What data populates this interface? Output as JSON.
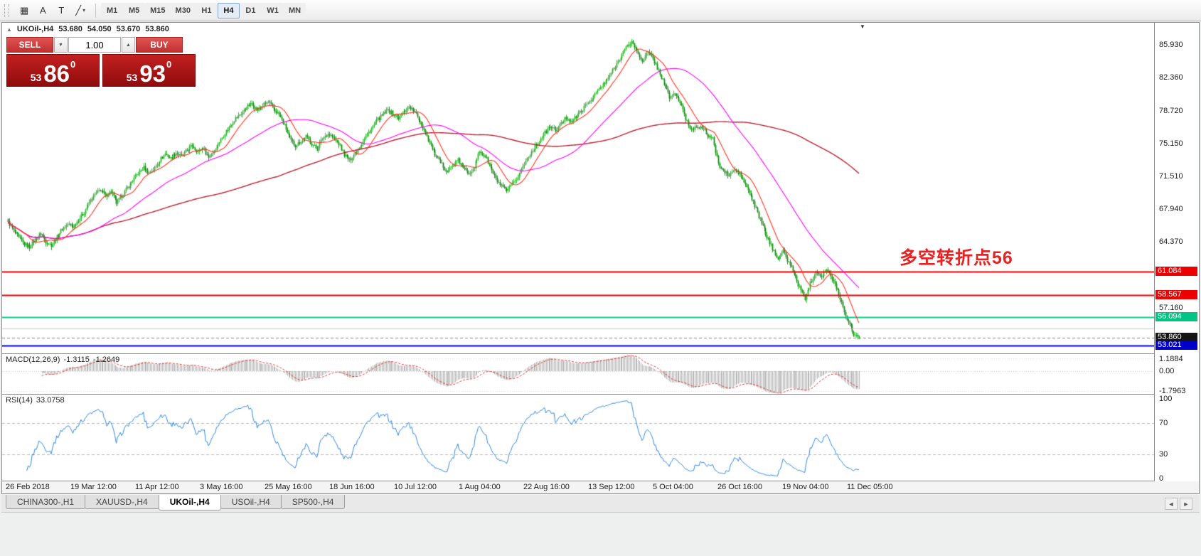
{
  "toolbar": {
    "tools": [
      {
        "name": "crosshair-tool-icon",
        "glyph": "▦"
      },
      {
        "name": "text-tool-icon",
        "glyph": "A"
      },
      {
        "name": "text-label-tool-icon",
        "glyph": "T"
      },
      {
        "name": "draw-line-tool-icon",
        "glyph": "╱",
        "caret": "▾"
      }
    ],
    "timeframes": [
      "M1",
      "M5",
      "M15",
      "M30",
      "H1",
      "H4",
      "D1",
      "W1",
      "MN"
    ],
    "active_timeframe": "H4"
  },
  "header": {
    "collapse_icon": "▲",
    "symbol": "UKOil-,H4",
    "open": "53.680",
    "high": "54.050",
    "low": "53.670",
    "close": "53.860"
  },
  "trade_panel": {
    "sell_label": "SELL",
    "buy_label": "BUY",
    "volume": "1.00",
    "volume_down_icon": "▼",
    "volume_up_icon": "▲",
    "sell_price": {
      "small": "53",
      "big": "86",
      "sup": "0"
    },
    "buy_price": {
      "small": "53",
      "big": "93",
      "sup": "0"
    }
  },
  "annotation": {
    "text": "多空转折点56",
    "color": "#e62222"
  },
  "price_axis": {
    "ticks": [
      "85.930",
      "82.360",
      "78.720",
      "75.150",
      "71.510",
      "67.940",
      "64.370",
      "57.160"
    ]
  },
  "levels": [
    {
      "price": 61.084,
      "label": "61.084",
      "color": "#ee0000",
      "tag_bg": "#ee0000",
      "width": 2,
      "style": "solid"
    },
    {
      "price": 58.567,
      "label": "58.567",
      "color": "#ee0000",
      "tag_bg": "#ee0000",
      "width": 2,
      "style": "solid"
    },
    {
      "price": 56.094,
      "label": "56.094",
      "color": "#00d08c",
      "tag_bg": "#00c483",
      "width": 2,
      "style": "solid"
    },
    {
      "price": 54.88,
      "label": "",
      "color": "#c8c8c8",
      "tag_bg": "",
      "width": 1,
      "style": "solid"
    },
    {
      "price": 53.86,
      "label": "53.860",
      "color": "#808080",
      "tag_bg": "#141414",
      "width": 1,
      "style": "dash"
    },
    {
      "price": 53.021,
      "label": "53.021",
      "color": "#0000cc",
      "tag_bg": "#0000c8",
      "width": 2,
      "style": "solid"
    }
  ],
  "macd": {
    "name": "MACD(12,26,9)",
    "value1": "-1.3115",
    "value2": "-1.2649",
    "axis": [
      "1.1884",
      "0.00",
      "-1.7963"
    ],
    "axis_values": [
      1.1884,
      0,
      -1.7963
    ]
  },
  "rsi": {
    "name": "RSI(14)",
    "value": "33.0758",
    "axis": [
      "100",
      "70",
      "30",
      "0"
    ],
    "axis_values": [
      100,
      70,
      30,
      0
    ],
    "levels": [
      70,
      30
    ]
  },
  "dates": [
    "26 Feb 2018",
    "19 Mar 12:00",
    "11 Apr 12:00",
    "3 May 16:00",
    "25 May 16:00",
    "18 Jun 16:00",
    "10 Jul 12:00",
    "1 Aug 04:00",
    "22 Aug 16:00",
    "13 Sep 12:00",
    "5 Oct 04:00",
    "26 Oct 16:00",
    "19 Nov 04:00",
    "11 Dec 05:00"
  ],
  "tabs": {
    "items": [
      "CHINA300-,H1",
      "XAUUSD-,H4",
      "UKOil-,H4",
      "USOil-,H4",
      "SP500-,H4"
    ],
    "active_index": 2,
    "scroll_left_icon": "◄",
    "scroll_right_icon": "►"
  },
  "chart_data": {
    "type": "candlestick",
    "title": "UKOil-,H4",
    "symbol": "UKOil-",
    "timeframe": "H4",
    "ohlc_current": {
      "open": 53.68,
      "high": 54.05,
      "low": 53.67,
      "close": 53.86
    },
    "y_ticks": [
      85.93,
      82.36,
      78.72,
      75.15,
      71.51,
      67.94,
      64.37,
      57.16
    ],
    "price_min": 52.15,
    "price_max": 88.35,
    "x_tick_labels": [
      "26 Feb 2018",
      "19 Mar 12:00",
      "11 Apr 12:00",
      "3 May 16:00",
      "25 May 16:00",
      "18 Jun 16:00",
      "10 Jul 12:00",
      "1 Aug 04:00",
      "22 Aug 16:00",
      "13 Sep 12:00",
      "5 Oct 04:00",
      "26 Oct 16:00",
      "19 Nov 04:00",
      "11 Dec 05:00"
    ],
    "close_path": [
      66.5,
      65.6,
      64.8,
      64.1,
      63.8,
      64.6,
      65.3,
      64.4,
      64.0,
      64.9,
      65.8,
      66.3,
      66.0,
      66.8,
      67.6,
      68.7,
      69.5,
      70.1,
      69.4,
      69.9,
      68.6,
      69.4,
      70.3,
      71.1,
      71.9,
      72.5,
      71.9,
      72.4,
      73.3,
      74.0,
      73.5,
      74.1,
      73.7,
      74.4,
      74.9,
      74.2,
      74.7,
      73.6,
      74.4,
      75.3,
      76.3,
      77.1,
      77.9,
      78.4,
      79.1,
      79.5,
      78.8,
      79.3,
      79.7,
      78.9,
      78.3,
      77.1,
      75.6,
      74.9,
      75.4,
      75.9,
      75.1,
      74.5,
      75.7,
      76.2,
      75.8,
      75.1,
      73.9,
      73.3,
      74.1,
      74.9,
      75.9,
      76.8,
      77.6,
      78.2,
      78.8,
      78.4,
      77.9,
      78.6,
      79.2,
      78.5,
      77.6,
      76.3,
      74.9,
      73.6,
      72.8,
      72.1,
      72.7,
      73.3,
      72.4,
      71.9,
      72.6,
      74.3,
      73.7,
      72.5,
      71.2,
      70.4,
      69.9,
      70.6,
      71.5,
      72.6,
      73.8,
      74.6,
      75.4,
      76.3,
      77.0,
      76.6,
      77.3,
      78.0,
      77.6,
      78.2,
      78.9,
      79.6,
      80.3,
      81.1,
      81.7,
      82.6,
      83.6,
      84.7,
      85.6,
      86.3,
      85.2,
      84.2,
      85.1,
      84.4,
      83.1,
      81.7,
      80.2,
      80.6,
      79.6,
      77.8,
      76.6,
      77.1,
      76.8,
      76.1,
      75.6,
      72.9,
      72.1,
      71.6,
      72.3,
      71.8,
      70.6,
      69.4,
      67.9,
      66.4,
      64.9,
      63.6,
      62.6,
      63.3,
      62.1,
      60.9,
      59.3,
      58.2,
      59.8,
      61.2,
      60.6,
      61.4,
      60.2,
      59.1,
      57.2,
      55.6,
      54.3,
      53.9
    ],
    "candles_per_point": 4,
    "up_color": "#2fb32f",
    "down_color": "#0f8a0f",
    "moving_averages": [
      {
        "period": 15,
        "color": "#ff3322"
      },
      {
        "period": 60,
        "color": "#ff00ff"
      },
      {
        "period": 200,
        "color": "#bb2233"
      }
    ],
    "indicators": [
      {
        "name": "MACD",
        "params": [
          12,
          26,
          9
        ],
        "current": [
          -1.3115,
          -1.2649
        ],
        "range": [
          -1.7963,
          1.1884
        ]
      },
      {
        "name": "RSI",
        "params": [
          14
        ],
        "current": 33.0758,
        "range": [
          0,
          100
        ],
        "levels": [
          70,
          30
        ]
      }
    ],
    "horizontal_levels": [
      61.084,
      58.567,
      56.094,
      53.86,
      53.021
    ],
    "annotation": {
      "text": "多空转折点56",
      "near_price": 61.084
    }
  }
}
